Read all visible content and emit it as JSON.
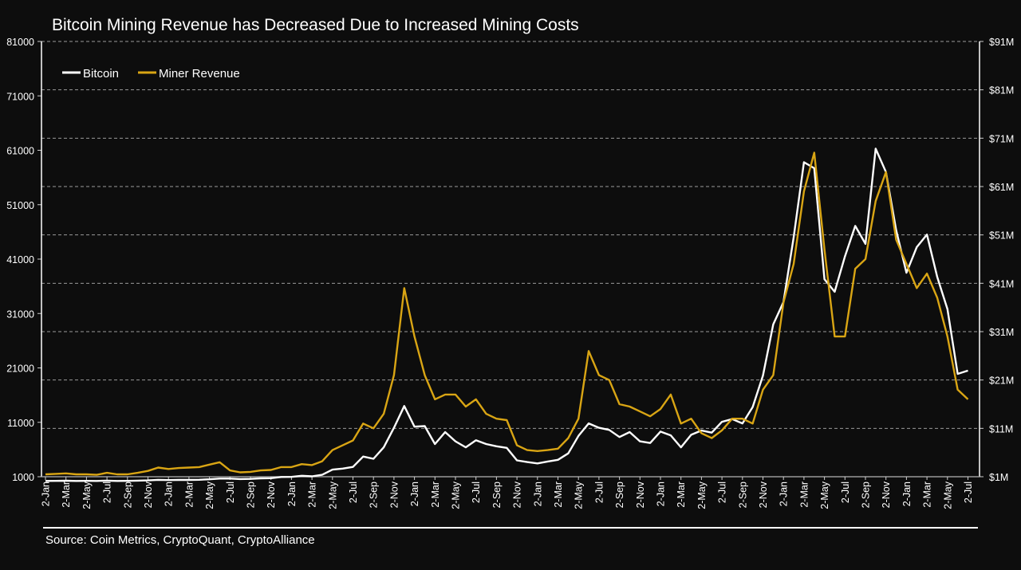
{
  "chart_data": {
    "type": "line",
    "title": "Bitcoin Mining Revenue has Decreased Due to Increased Mining Costs",
    "source": "Source: Coin Metrics, CryptoQuant, CryptoAlliance",
    "legend_position": "top-left",
    "grid": "horizontal dashed",
    "colors": {
      "Bitcoin": "#ffffff",
      "Miner Revenue": "#d9a514",
      "background": "#0d0d0d"
    },
    "left_axis": {
      "ylim": [
        1000,
        81000
      ],
      "ticks": [
        "1000",
        "11000",
        "21000",
        "31000",
        "41000",
        "51000",
        "61000",
        "71000",
        "81000"
      ]
    },
    "right_axis": {
      "ylim": [
        1,
        91
      ],
      "unit": "$M",
      "ticks": [
        "$1M",
        "$11M",
        "$21M",
        "$31M",
        "$41M",
        "$51M",
        "$61M",
        "$71M",
        "$81M",
        "$91M"
      ]
    },
    "x_tick_labels": [
      "2-Jan",
      "2-Mar",
      "2-May",
      "2-Jul",
      "2-Sep",
      "2-Nov",
      "2-Jan",
      "2-Mar",
      "2-May",
      "2-Jul",
      "2-Sep",
      "2-Nov",
      "2-Jan",
      "2-Mar",
      "2-May",
      "2-Jul",
      "2-Sep",
      "2-Nov",
      "2-Jan",
      "2-Mar",
      "2-May",
      "2-Jul",
      "2-Sep",
      "2-Nov",
      "2-Jan",
      "2-Mar",
      "2-May",
      "2-Jul",
      "2-Sep",
      "2-Nov",
      "2-Jan",
      "2-Mar",
      "2-May",
      "2-Jul",
      "2-Sep",
      "2-Nov",
      "2-Jan",
      "2-Mar",
      "2-May",
      "2-Jul",
      "2-Sep",
      "2-Nov",
      "2-Jan",
      "2-Mar",
      "2-May",
      "2-Jul"
    ],
    "x": [
      "2015-01",
      "2015-02",
      "2015-03",
      "2015-04",
      "2015-05",
      "2015-06",
      "2015-07",
      "2015-08",
      "2015-09",
      "2015-10",
      "2015-11",
      "2015-12",
      "2016-01",
      "2016-02",
      "2016-03",
      "2016-04",
      "2016-05",
      "2016-06",
      "2016-07",
      "2016-08",
      "2016-09",
      "2016-10",
      "2016-11",
      "2016-12",
      "2017-01",
      "2017-02",
      "2017-03",
      "2017-04",
      "2017-05",
      "2017-06",
      "2017-07",
      "2017-08",
      "2017-09",
      "2017-10",
      "2017-11",
      "2017-12",
      "2018-01",
      "2018-02",
      "2018-03",
      "2018-04",
      "2018-05",
      "2018-06",
      "2018-07",
      "2018-08",
      "2018-09",
      "2018-10",
      "2018-11",
      "2018-12",
      "2019-01",
      "2019-02",
      "2019-03",
      "2019-04",
      "2019-05",
      "2019-06",
      "2019-07",
      "2019-08",
      "2019-09",
      "2019-10",
      "2019-11",
      "2019-12",
      "2020-01",
      "2020-02",
      "2020-03",
      "2020-04",
      "2020-05",
      "2020-06",
      "2020-07",
      "2020-08",
      "2020-09",
      "2020-10",
      "2020-11",
      "2020-12",
      "2021-01",
      "2021-02",
      "2021-03",
      "2021-04",
      "2021-05",
      "2021-06",
      "2021-07",
      "2021-08",
      "2021-09",
      "2021-10",
      "2021-11",
      "2021-12",
      "2022-01",
      "2022-02",
      "2022-03",
      "2022-04",
      "2022-05",
      "2022-06",
      "2022-07"
    ],
    "series": [
      {
        "name": "Bitcoin",
        "axis": "left",
        "values": [
          220,
          240,
          270,
          230,
          235,
          225,
          280,
          230,
          235,
          280,
          330,
          430,
          380,
          420,
          415,
          450,
          530,
          670,
          660,
          575,
          610,
          700,
          740,
          960,
          970,
          1180,
          1070,
          1350,
          2300,
          2500,
          2800,
          4700,
          4300,
          6400,
          10000,
          14000,
          10200,
          10300,
          7000,
          9200,
          7500,
          6400,
          7700,
          7000,
          6600,
          6300,
          4000,
          3700,
          3450,
          3800,
          4100,
          5300,
          8500,
          10800,
          10000,
          9600,
          8300,
          9200,
          7500,
          7200,
          9300,
          8600,
          6400,
          8700,
          9500,
          9100,
          11100,
          11600,
          10800,
          13800,
          19600,
          29000,
          33100,
          45000,
          58800,
          57700,
          37300,
          35000,
          41500,
          47100,
          43800,
          61300,
          57000,
          46300,
          38500,
          43200,
          45500,
          37700,
          31800,
          19900,
          20500
        ]
      },
      {
        "name": "Miner Revenue",
        "axis": "right",
        "values": [
          1.5,
          1.6,
          1.7,
          1.5,
          1.5,
          1.4,
          1.8,
          1.5,
          1.5,
          1.8,
          2.2,
          2.9,
          2.6,
          2.8,
          2.9,
          3.0,
          3.5,
          4.0,
          2.3,
          1.9,
          2.0,
          2.3,
          2.4,
          3.0,
          3.0,
          3.6,
          3.4,
          4.2,
          6.5,
          7.5,
          8.5,
          12,
          11,
          14,
          22,
          40,
          30,
          22,
          17,
          18,
          18,
          15.5,
          17,
          14,
          13,
          12.7,
          7.5,
          6.5,
          6.3,
          6.5,
          6.8,
          9,
          13,
          27,
          22,
          21,
          16,
          15.5,
          14.5,
          13.5,
          15,
          18,
          12,
          13,
          10,
          9,
          10.6,
          13,
          13,
          12,
          19,
          22,
          37,
          45,
          60,
          68,
          48,
          30,
          30,
          44,
          46,
          58,
          64,
          50,
          45,
          40,
          43,
          38,
          30,
          19,
          17
        ]
      }
    ]
  }
}
